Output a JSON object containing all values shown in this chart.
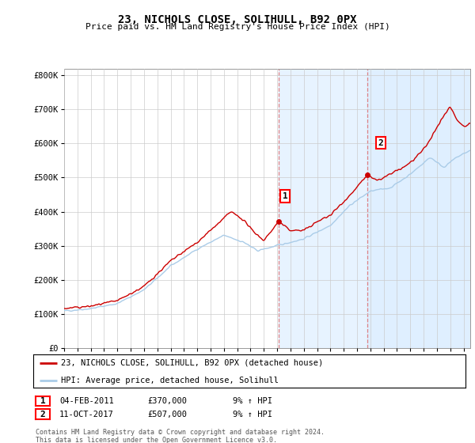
{
  "title": "23, NICHOLS CLOSE, SOLIHULL, B92 0PX",
  "subtitle": "Price paid vs. HM Land Registry's House Price Index (HPI)",
  "ylabel_ticks": [
    "£0",
    "£100K",
    "£200K",
    "£300K",
    "£400K",
    "£500K",
    "£600K",
    "£700K",
    "£800K"
  ],
  "ytick_values": [
    0,
    100000,
    200000,
    300000,
    400000,
    500000,
    600000,
    700000,
    800000
  ],
  "ylim": [
    0,
    820000
  ],
  "xlim_start": 1995,
  "xlim_end": 2025.5,
  "sale1_year": 2011.09,
  "sale1_price": 370000,
  "sale2_year": 2017.79,
  "sale2_price": 507000,
  "hpi_color": "#aacce8",
  "price_color": "#cc0000",
  "vline_color": "#dd6666",
  "vband_color": "#ddeeff",
  "legend_label_price": "23, NICHOLS CLOSE, SOLIHULL, B92 0PX (detached house)",
  "legend_label_hpi": "HPI: Average price, detached house, Solihull",
  "table_row1": [
    "1",
    "04-FEB-2011",
    "£370,000",
    "9% ↑ HPI"
  ],
  "table_row2": [
    "2",
    "11-OCT-2017",
    "£507,000",
    "9% ↑ HPI"
  ],
  "footnote": "Contains HM Land Registry data © Crown copyright and database right 2024.\nThis data is licensed under the Open Government Licence v3.0.",
  "background_color": "#ffffff",
  "grid_color": "#cccccc",
  "hpi_waypoints": [
    [
      1995.0,
      108000
    ],
    [
      1997.0,
      115000
    ],
    [
      1999.0,
      130000
    ],
    [
      2001.0,
      170000
    ],
    [
      2003.0,
      240000
    ],
    [
      2005.0,
      290000
    ],
    [
      2007.0,
      330000
    ],
    [
      2008.5,
      310000
    ],
    [
      2009.5,
      285000
    ],
    [
      2010.5,
      295000
    ],
    [
      2011.5,
      305000
    ],
    [
      2013.0,
      320000
    ],
    [
      2015.0,
      360000
    ],
    [
      2016.5,
      420000
    ],
    [
      2018.0,
      460000
    ],
    [
      2019.5,
      470000
    ],
    [
      2021.0,
      510000
    ],
    [
      2022.5,
      560000
    ],
    [
      2023.5,
      530000
    ],
    [
      2024.5,
      560000
    ],
    [
      2025.5,
      580000
    ]
  ],
  "price_waypoints": [
    [
      1995.0,
      115000
    ],
    [
      1997.0,
      122000
    ],
    [
      1999.0,
      138000
    ],
    [
      2001.0,
      180000
    ],
    [
      2003.0,
      255000
    ],
    [
      2005.0,
      310000
    ],
    [
      2007.0,
      380000
    ],
    [
      2007.5,
      400000
    ],
    [
      2008.5,
      375000
    ],
    [
      2009.0,
      350000
    ],
    [
      2010.0,
      315000
    ],
    [
      2011.09,
      370000
    ],
    [
      2012.0,
      345000
    ],
    [
      2013.0,
      345000
    ],
    [
      2014.0,
      370000
    ],
    [
      2015.0,
      390000
    ],
    [
      2016.5,
      450000
    ],
    [
      2017.79,
      507000
    ],
    [
      2018.5,
      490000
    ],
    [
      2019.5,
      510000
    ],
    [
      2020.5,
      530000
    ],
    [
      2021.5,
      560000
    ],
    [
      2022.5,
      610000
    ],
    [
      2023.0,
      650000
    ],
    [
      2023.5,
      680000
    ],
    [
      2024.0,
      710000
    ],
    [
      2024.5,
      670000
    ],
    [
      2025.0,
      650000
    ],
    [
      2025.5,
      660000
    ]
  ]
}
